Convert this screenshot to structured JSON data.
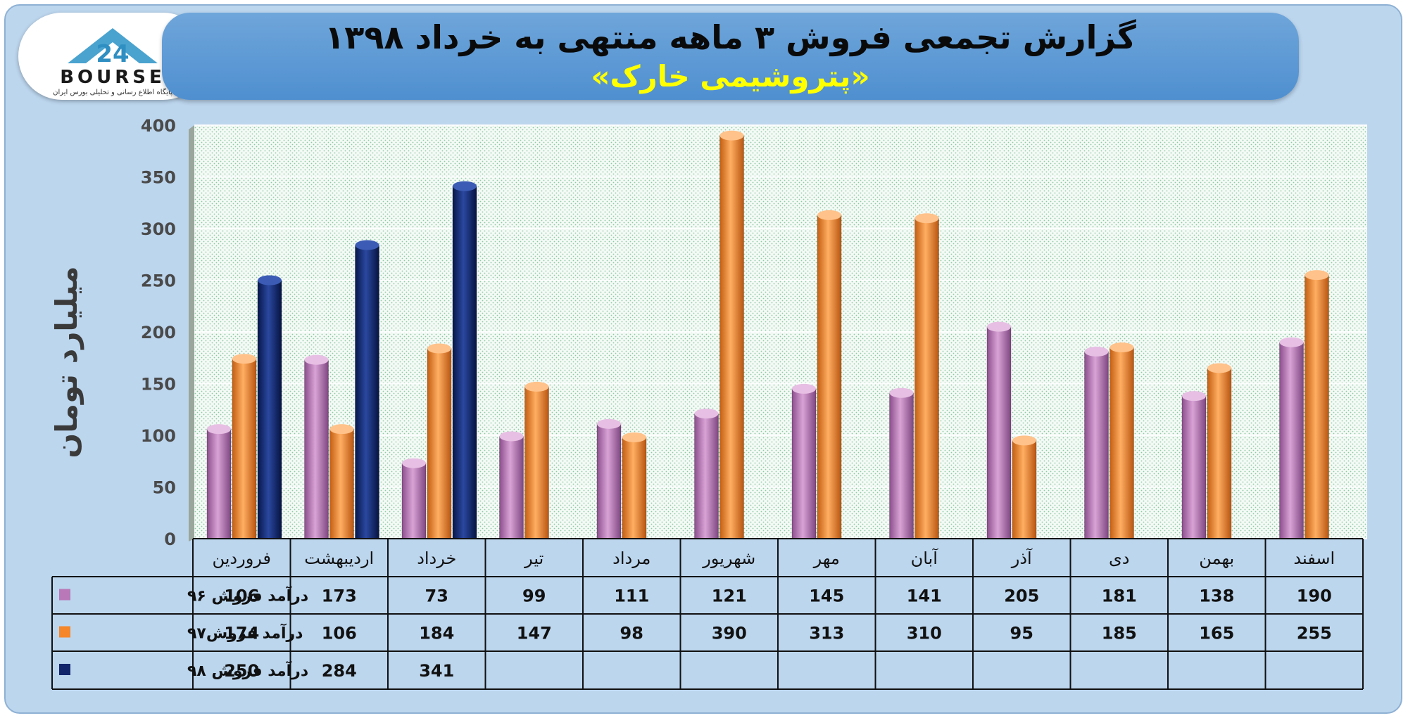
{
  "title": {
    "line1": "گزارش تجمعی فروش ۳ ماهه منتهی به خرداد ۱۳۹۸",
    "line2": "«پتروشیمی خارک»"
  },
  "logo": {
    "text": "BOURSE",
    "number": "24",
    "tagline": "پایگاه اطلاع رسانی و تحلیلی بورس ایران"
  },
  "colors": {
    "s96": "#b978b8",
    "s97": "#f5862a",
    "s98": "#12256a",
    "frame": "#bcd6ee",
    "banner": "#5b98d4",
    "title2": "#ffff00"
  },
  "chart_data": {
    "type": "bar",
    "title": "گزارش تجمعی فروش ۳ ماهه منتهی به خرداد ۱۳۹۸",
    "subtitle": "«پتروشیمی خارک»",
    "ylabel": "میلیارد تومان",
    "xlabel": "",
    "ylim": [
      0,
      400
    ],
    "yticks": [
      "0",
      "50",
      "100",
      "150",
      "200",
      "250",
      "300",
      "350",
      "400"
    ],
    "grid": true,
    "legend": "left of data table",
    "categories": [
      "فروردین",
      "اردیبهشت",
      "خرداد",
      "تیر",
      "مرداد",
      "شهریور",
      "مهر",
      "آبان",
      "آذر",
      "دی",
      "بهمن",
      "اسفند"
    ],
    "series": [
      {
        "name": "درآمد فروش ۹۶",
        "values": [
          106,
          173,
          73,
          99,
          111,
          121,
          145,
          141,
          205,
          181,
          138,
          190
        ]
      },
      {
        "name": "درآمد فروش۹۷",
        "values": [
          174,
          106,
          184,
          147,
          98,
          390,
          313,
          310,
          95,
          185,
          165,
          255
        ]
      },
      {
        "name": "درآمد فروش ۹۸",
        "values": [
          250,
          284,
          341,
          null,
          null,
          null,
          null,
          null,
          null,
          null,
          null,
          null
        ]
      }
    ]
  }
}
